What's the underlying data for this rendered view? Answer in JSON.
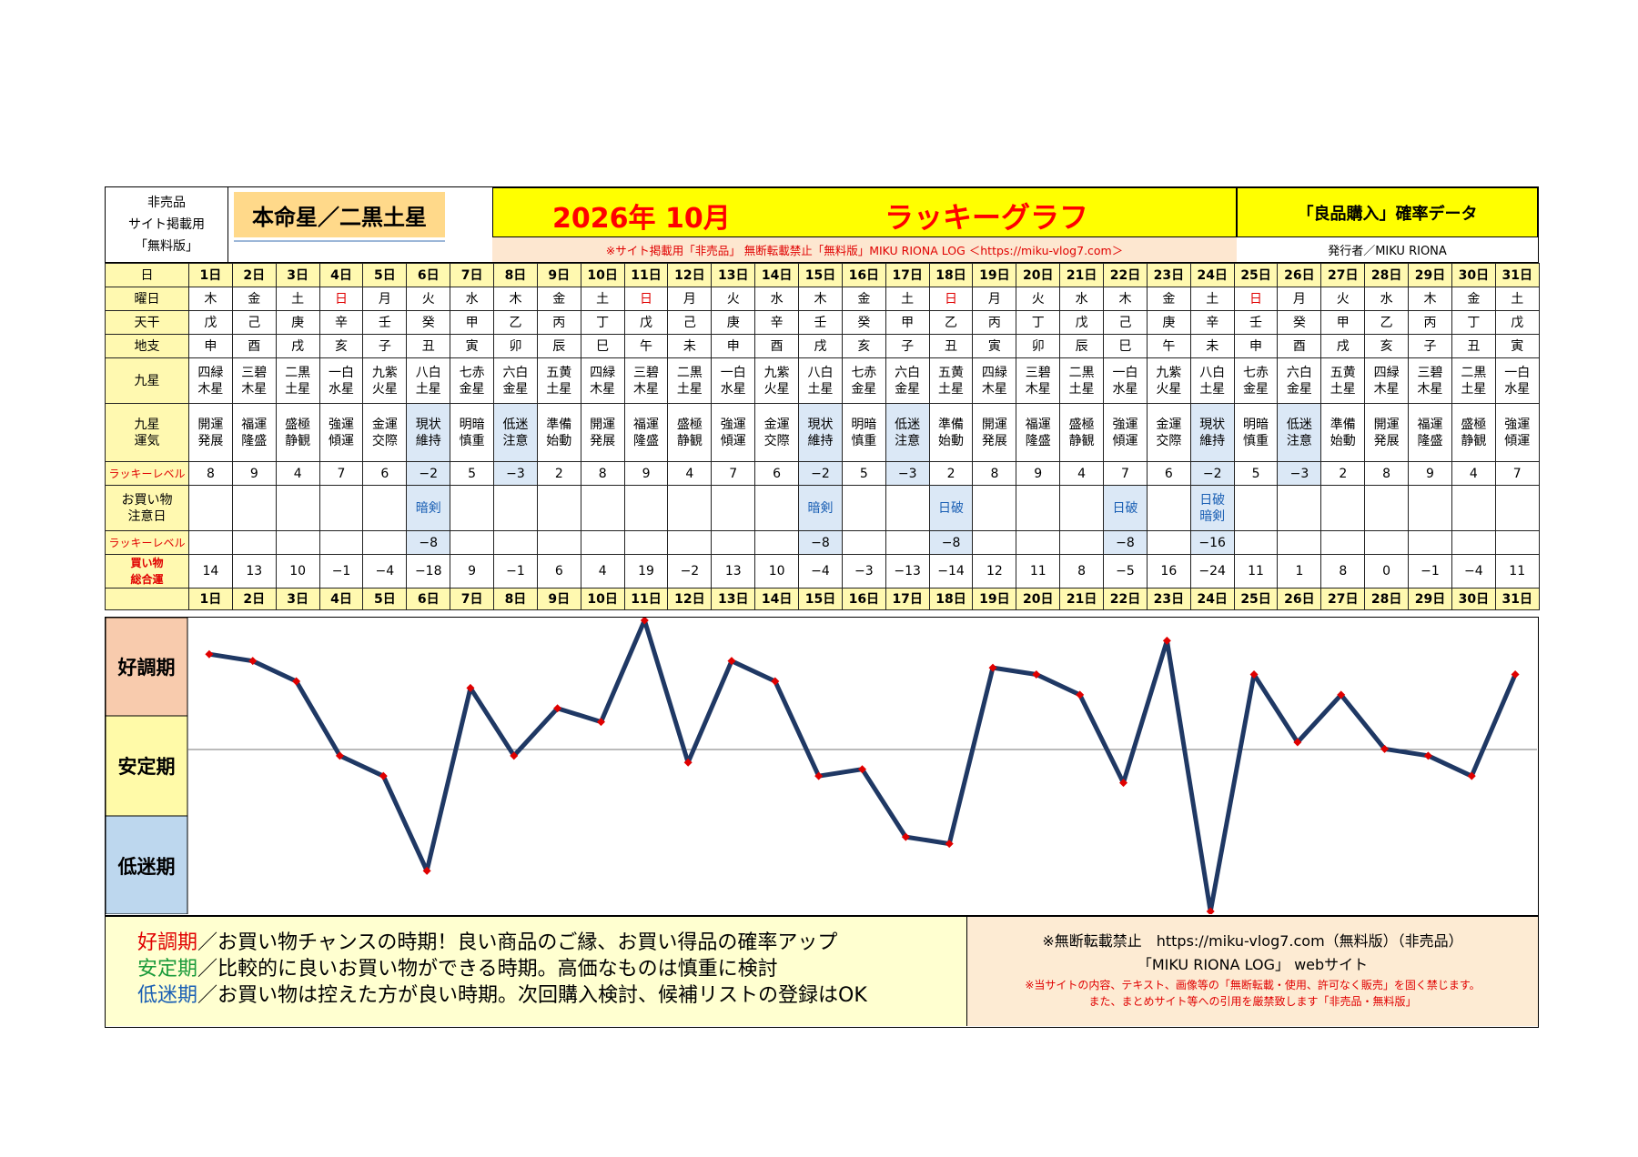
{
  "header": {
    "not_for_sale": "非売品",
    "site_use": "サイト掲載用",
    "free_edition": "「無料版」",
    "natal_star": "本命星／二黒土星",
    "date_title": "2026年 10月",
    "graph_title": "ラッキーグラフ",
    "data_title": "「良品購入」確率データ",
    "notice": "※サイト掲載用「非売品」 無断転載禁止「無料版」MIKU RIONA LOG ＜https://miku-vlog7.com＞",
    "publisher": "発行者／MIKU RIONA"
  },
  "row_labels": {
    "day": "日",
    "weekday": "曜日",
    "stem": "天干",
    "branch": "地支",
    "star": "九星",
    "fortune": "九星運気",
    "lucky": "ラッキーレベル",
    "caution": "お買い物注意日",
    "lucky2": "ラッキーレベル",
    "total": "買い物総合運"
  },
  "days": [
    "1日",
    "2日",
    "3日",
    "4日",
    "5日",
    "6日",
    "7日",
    "8日",
    "9日",
    "10日",
    "11日",
    "12日",
    "13日",
    "14日",
    "15日",
    "16日",
    "17日",
    "18日",
    "19日",
    "20日",
    "21日",
    "22日",
    "23日",
    "24日",
    "25日",
    "26日",
    "27日",
    "28日",
    "29日",
    "30日",
    "31日"
  ],
  "weekdays": [
    "木",
    "金",
    "土",
    "日",
    "月",
    "火",
    "水",
    "木",
    "金",
    "土",
    "日",
    "月",
    "火",
    "水",
    "木",
    "金",
    "土",
    "日",
    "月",
    "火",
    "水",
    "木",
    "金",
    "土",
    "日",
    "月",
    "火",
    "水",
    "木",
    "金",
    "土"
  ],
  "stems": [
    "戊",
    "己",
    "庚",
    "辛",
    "壬",
    "癸",
    "甲",
    "乙",
    "丙",
    "丁",
    "戊",
    "己",
    "庚",
    "辛",
    "壬",
    "癸",
    "甲",
    "乙",
    "丙",
    "丁",
    "戊",
    "己",
    "庚",
    "辛",
    "壬",
    "癸",
    "甲",
    "乙",
    "丙",
    "丁",
    "戊"
  ],
  "branches": [
    "申",
    "酉",
    "戌",
    "亥",
    "子",
    "丑",
    "寅",
    "卯",
    "辰",
    "巳",
    "午",
    "未",
    "申",
    "酉",
    "戌",
    "亥",
    "子",
    "丑",
    "寅",
    "卯",
    "辰",
    "巳",
    "午",
    "未",
    "申",
    "酉",
    "戌",
    "亥",
    "子",
    "丑",
    "寅"
  ],
  "stars": [
    "四緑木星",
    "三碧木星",
    "二黒土星",
    "一白水星",
    "九紫火星",
    "八白土星",
    "七赤金星",
    "六白金星",
    "五黄土星",
    "四緑木星",
    "三碧木星",
    "二黒土星",
    "一白水星",
    "九紫火星",
    "八白土星",
    "七赤金星",
    "六白金星",
    "五黄土星",
    "四緑木星",
    "三碧木星",
    "二黒土星",
    "一白水星",
    "九紫火星",
    "八白土星",
    "七赤金星",
    "六白金星",
    "五黄土星",
    "四緑木星",
    "三碧木星",
    "二黒土星",
    "一白水星"
  ],
  "fortunes": [
    "開運発展",
    "福運隆盛",
    "盛極静観",
    "強運傾運",
    "金運交際",
    "現状維持",
    "明暗慎重",
    "低迷注意",
    "準備始動",
    "開運発展",
    "福運隆盛",
    "盛極静観",
    "強運傾運",
    "金運交際",
    "現状維持",
    "明暗慎重",
    "低迷注意",
    "準備始動",
    "開運発展",
    "福運隆盛",
    "盛極静観",
    "強運傾運",
    "金運交際",
    "現状維持",
    "明暗慎重",
    "低迷注意",
    "準備始動",
    "開運発展",
    "福運隆盛",
    "盛極静観",
    "強運傾運"
  ],
  "lucky_levels": [
    "8",
    "9",
    "4",
    "7",
    "6",
    "−2",
    "5",
    "−3",
    "2",
    "8",
    "9",
    "4",
    "7",
    "6",
    "−2",
    "5",
    "−3",
    "2",
    "8",
    "9",
    "4",
    "7",
    "6",
    "−2",
    "5",
    "−3",
    "2",
    "8",
    "9",
    "4",
    "7"
  ],
  "caution_days": [
    "",
    "",
    "",
    "",
    "",
    "暗剣",
    "",
    "",
    "",
    "",
    "",
    "",
    "",
    "",
    "暗剣",
    "",
    "",
    "日破",
    "",
    "",
    "",
    "日破",
    "",
    "日破暗剣",
    "",
    "",
    "",
    "",
    "",
    "",
    ""
  ],
  "lucky_levels_2": [
    "",
    "",
    "",
    "",
    "",
    "−8",
    "",
    "",
    "",
    "",
    "",
    "",
    "",
    "",
    "−8",
    "",
    "",
    "−8",
    "",
    "",
    "",
    "−8",
    "",
    "−16",
    "",
    "",
    "",
    "",
    "",
    "",
    ""
  ],
  "totals": [
    "14",
    "13",
    "10",
    "−1",
    "−4",
    "−18",
    "9",
    "−1",
    "6",
    "4",
    "19",
    "−2",
    "13",
    "10",
    "−4",
    "−3",
    "−13",
    "−14",
    "12",
    "11",
    "8",
    "−5",
    "16",
    "−24",
    "11",
    "1",
    "8",
    "0",
    "−1",
    "−4",
    "11"
  ],
  "zones": {
    "good": "好調期",
    "stable": "安定期",
    "low": "低迷期"
  },
  "colors": {
    "good": "#f8cbad",
    "stable": "#fffaa8",
    "low": "#bdd7ee",
    "line": "#1f3864",
    "marker": "#e00000",
    "yellow": "#ffff00",
    "title_red": "#ff0000"
  },
  "chart_data": {
    "type": "line",
    "x": [
      "1日",
      "2日",
      "3日",
      "4日",
      "5日",
      "6日",
      "7日",
      "8日",
      "9日",
      "10日",
      "11日",
      "12日",
      "13日",
      "14日",
      "15日",
      "16日",
      "17日",
      "18日",
      "19日",
      "20日",
      "21日",
      "22日",
      "23日",
      "24日",
      "25日",
      "26日",
      "27日",
      "28日",
      "29日",
      "30日",
      "31日"
    ],
    "values": [
      14,
      13,
      10,
      -1,
      -4,
      -18,
      9,
      -1,
      6,
      4,
      19,
      -2,
      13,
      10,
      -4,
      -3,
      -13,
      -14,
      12,
      11,
      8,
      -5,
      16,
      -24,
      11,
      1,
      8,
      0,
      -1,
      -4,
      11
    ],
    "ylim": [
      -24,
      19
    ],
    "grid": false
  },
  "legend": {
    "good_term": "好調期",
    "good_text": "／お買い物チャンスの時期！良い商品のご縁、お買い得品の確率アップ",
    "stable_term": "安定期",
    "stable_text": "／比較的に良いお買い物ができる時期。高価なものは慎重に検討",
    "low_term": "低迷期",
    "low_text": "／お買い物は控えた方が良い時期。次回購入検討、候補リストの登録はOK",
    "notice_title": "※無断転載禁止　https://miku-vlog7.com（無料版）（非売品）",
    "site_name": "「MIKU RIONA LOG」 webサイト",
    "warning1": "※当サイトの内容、テキスト、画像等の「無断転載・使用、許可なく販売」を固く禁じます。",
    "warning2": "また、まとめサイト等への引用を厳禁致します「非売品・無料版」"
  }
}
